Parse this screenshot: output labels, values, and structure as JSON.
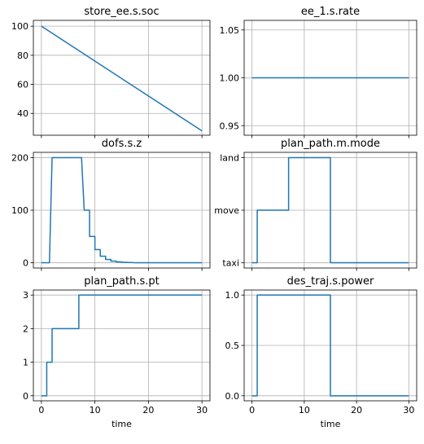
{
  "figure": {
    "line_color": "#1f77b4",
    "grid": true
  },
  "chart_data": [
    {
      "type": "line",
      "title": "store_ee.s.soc",
      "xlabel": "",
      "xlim": [
        -1.5,
        31.5
      ],
      "ylim": [
        25,
        104
      ],
      "x_ticks": [
        0,
        10,
        20,
        30
      ],
      "show_x_ticklabels": false,
      "y_ticks": [
        40,
        60,
        80,
        100
      ],
      "y_ticklabels": [
        "40",
        "60",
        "80",
        "100"
      ],
      "x": [
        0,
        30
      ],
      "y": [
        100,
        28
      ]
    },
    {
      "type": "line",
      "title": "ee_1.s.rate",
      "xlabel": "",
      "xlim": [
        -1.5,
        31.5
      ],
      "ylim": [
        0.94,
        1.06
      ],
      "x_ticks": [
        0,
        10,
        20,
        30
      ],
      "show_x_ticklabels": false,
      "y_ticks": [
        0.95,
        1.0,
        1.05
      ],
      "y_ticklabels": [
        "0.95",
        "1.00",
        "1.05"
      ],
      "x": [
        0,
        30
      ],
      "y": [
        1.0,
        1.0
      ]
    },
    {
      "type": "line",
      "title": "dofs.s.z",
      "xlabel": "",
      "xlim": [
        -1.5,
        31.5
      ],
      "ylim": [
        -10,
        210
      ],
      "x_ticks": [
        0,
        10,
        20,
        30
      ],
      "show_x_ticklabels": false,
      "y_ticks": [
        0,
        100,
        200
      ],
      "y_ticklabels": [
        "0",
        "100",
        "200"
      ],
      "x": [
        0,
        1.5,
        2,
        7.5,
        8,
        9,
        9,
        10,
        10,
        11,
        11,
        12,
        12,
        13,
        13,
        14,
        14,
        15,
        15,
        16,
        16,
        17,
        17,
        18,
        30
      ],
      "y": [
        0,
        0,
        200,
        200,
        100,
        100,
        50,
        50,
        25,
        25,
        12.5,
        12.5,
        6.2,
        6.2,
        3.1,
        3.1,
        1.6,
        1.6,
        0.8,
        0.8,
        0.4,
        0.4,
        0.2,
        0,
        0
      ]
    },
    {
      "type": "line",
      "title": "plan_path.m.mode",
      "xlabel": "",
      "xlim": [
        -1.5,
        31.5
      ],
      "ylim": [
        -0.1,
        2.1
      ],
      "x_ticks": [
        0,
        10,
        20,
        30
      ],
      "show_x_ticklabels": false,
      "y_ticks": [
        0,
        1,
        2
      ],
      "y_ticklabels": [
        "taxi",
        "move",
        "land"
      ],
      "x": [
        0,
        1,
        1,
        7,
        7,
        15,
        15,
        30
      ],
      "y": [
        0,
        0,
        1,
        1,
        2,
        2,
        0,
        0
      ]
    },
    {
      "type": "line",
      "title": "plan_path.s.pt",
      "xlabel": "time",
      "xlim": [
        -1.5,
        31.5
      ],
      "ylim": [
        -0.15,
        3.15
      ],
      "x_ticks": [
        0,
        10,
        20,
        30
      ],
      "show_x_ticklabels": true,
      "x_ticklabels": [
        "0",
        "10",
        "20",
        "30"
      ],
      "y_ticks": [
        0,
        1,
        2,
        3
      ],
      "y_ticklabels": [
        "0",
        "1",
        "2",
        "3"
      ],
      "x": [
        0,
        1,
        1,
        2,
        2,
        7,
        7,
        30
      ],
      "y": [
        0,
        0,
        1,
        1,
        2,
        2,
        3,
        3
      ]
    },
    {
      "type": "line",
      "title": "des_traj.s.power",
      "xlabel": "time",
      "xlim": [
        -1.5,
        31.5
      ],
      "ylim": [
        -0.05,
        1.05
      ],
      "x_ticks": [
        0,
        10,
        20,
        30
      ],
      "show_x_ticklabels": true,
      "x_ticklabels": [
        "0",
        "10",
        "20",
        "30"
      ],
      "y_ticks": [
        0,
        0.5,
        1.0
      ],
      "y_ticklabels": [
        "0.0",
        "0.5",
        "1.0"
      ],
      "x": [
        0,
        1,
        1,
        15,
        15,
        30
      ],
      "y": [
        0,
        0,
        1,
        1,
        0,
        0
      ]
    }
  ]
}
